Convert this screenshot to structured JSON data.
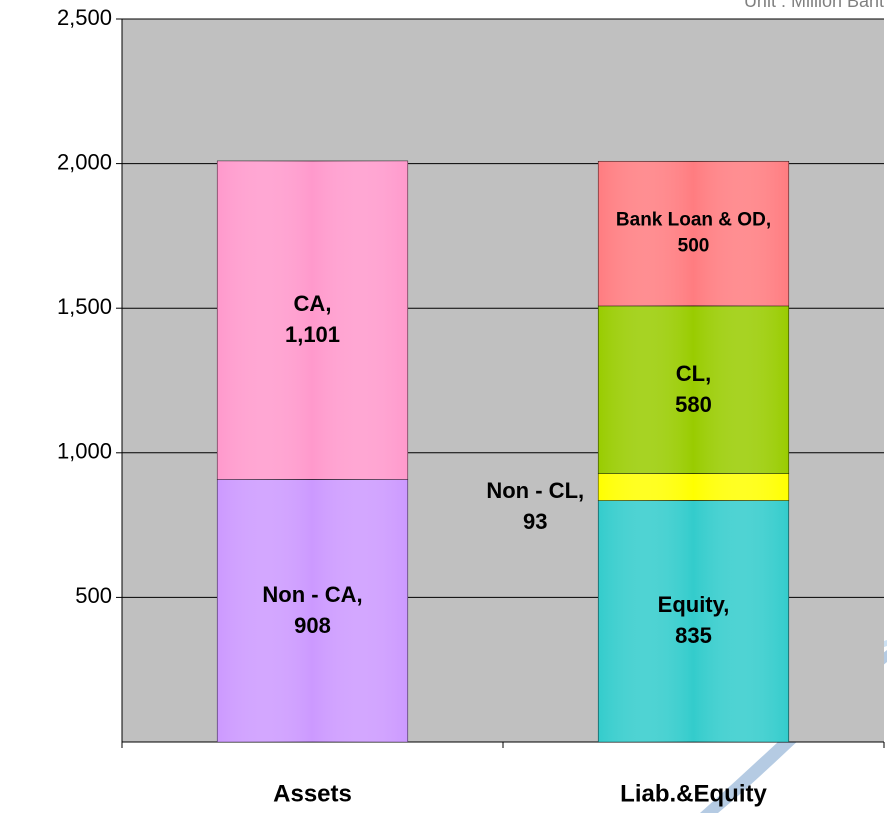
{
  "chart_data": {
    "type": "stacked_bar",
    "subtitle": "Unit : Million Baht",
    "categories": [
      "Assets",
      "Liab.&Equity"
    ],
    "label_separator": ",",
    "series": [
      {
        "name": "Non - CA",
        "color": "#cc99ff",
        "values": [
          908,
          null
        ],
        "value_labels": [
          "908",
          null
        ]
      },
      {
        "name": "CA",
        "color": "#ff99cc",
        "values": [
          1101,
          null
        ],
        "value_labels": [
          "1,101",
          null
        ]
      },
      {
        "name": "Equity",
        "color": "#33cccc",
        "values": [
          null,
          835
        ],
        "value_labels": [
          null,
          "835"
        ]
      },
      {
        "name": "Non - CL",
        "color": "#ffff00",
        "values": [
          null,
          93
        ],
        "value_labels": [
          null,
          "93"
        ]
      },
      {
        "name": "CL",
        "color": "#99cc00",
        "values": [
          null,
          580
        ],
        "value_labels": [
          null,
          "580"
        ]
      },
      {
        "name": "Bank Loan & OD",
        "color": "#ff7c80",
        "values": [
          null,
          500
        ],
        "value_labels": [
          null,
          "500"
        ]
      }
    ],
    "ylim": [
      0,
      2500
    ],
    "yticks": [
      {
        "value": 500,
        "label": "500"
      },
      {
        "value": 1000,
        "label": "1,000"
      },
      {
        "value": 1500,
        "label": "1,500"
      },
      {
        "value": 2000,
        "label": "2,000"
      },
      {
        "value": 2500,
        "label": "2,500"
      }
    ],
    "grid": true,
    "plot_background": "#c0c0c0"
  }
}
